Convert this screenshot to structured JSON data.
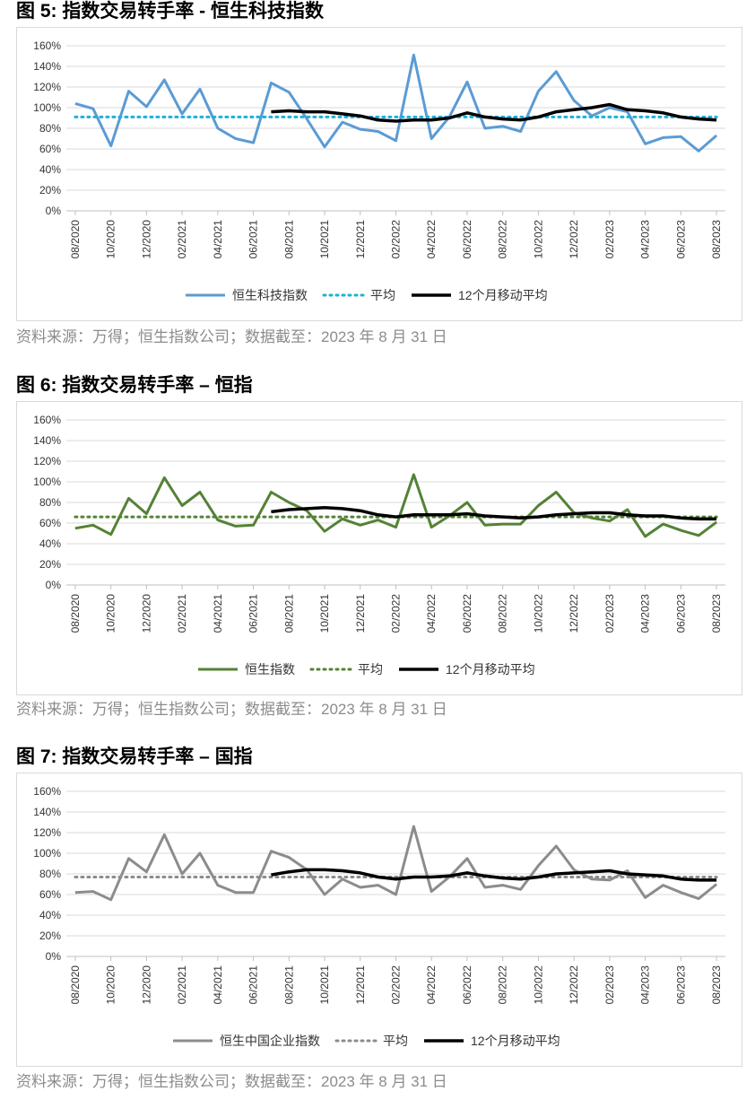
{
  "figures": [
    {
      "title": "图 5:  指数交易转手率  -  恒生科技指数",
      "source": "资料来源：万得；恒生指数公司；数据截至：2023 年 8 月 31 日",
      "colors": {
        "main": "#5b9bd5",
        "avg": "#1fb0d8",
        "ma": "#000000"
      },
      "chart_data": {
        "type": "line",
        "categories": [
          "08/2020",
          "09/2020",
          "10/2020",
          "11/2020",
          "12/2020",
          "01/2021",
          "02/2021",
          "03/2021",
          "04/2021",
          "05/2021",
          "06/2021",
          "07/2021",
          "08/2021",
          "09/2021",
          "10/2021",
          "11/2021",
          "12/2021",
          "01/2022",
          "02/2022",
          "03/2022",
          "04/2022",
          "05/2022",
          "06/2022",
          "07/2022",
          "08/2022",
          "09/2022",
          "10/2022",
          "11/2022",
          "12/2022",
          "01/2023",
          "02/2023",
          "03/2023",
          "04/2023",
          "05/2023",
          "06/2023",
          "07/2023",
          "08/2023"
        ],
        "tick_labels": [
          "08/2020",
          "10/2020",
          "12/2020",
          "02/2021",
          "04/2021",
          "06/2021",
          "08/2021",
          "10/2021",
          "12/2021",
          "02/2022",
          "04/2022",
          "06/2022",
          "08/2022",
          "10/2022",
          "12/2022",
          "02/2023",
          "04/2023",
          "06/2023",
          "08/2023"
        ],
        "y_ticks": [
          "0%",
          "20%",
          "40%",
          "60%",
          "80%",
          "100%",
          "120%",
          "140%",
          "160%"
        ],
        "ylim": [
          0,
          160
        ],
        "legend": [
          "恒生科技指数",
          "平均",
          "12个月移动平均"
        ],
        "series": [
          {
            "name": "恒生科技指数",
            "style": "solid",
            "values": [
              104,
              99,
              63,
              116,
              101,
              127,
              94,
              118,
              80,
              70,
              66,
              124,
              115,
              89,
              62,
              86,
              79,
              77,
              68,
              151,
              70,
              91,
              125,
              80,
              82,
              77,
              116,
              135,
              107,
              92,
              100,
              96,
              65,
              71,
              72,
              58,
              73
            ]
          },
          {
            "name": "平均",
            "style": "dotted",
            "values": [
              91,
              91,
              91,
              91,
              91,
              91,
              91,
              91,
              91,
              91,
              91,
              91,
              91,
              91,
              91,
              91,
              91,
              91,
              91,
              91,
              91,
              91,
              91,
              91,
              91,
              91,
              91,
              91,
              91,
              91,
              91,
              91,
              91,
              91,
              91,
              91,
              91
            ]
          },
          {
            "name": "12个月移动平均",
            "style": "solid",
            "values": [
              null,
              null,
              null,
              null,
              null,
              null,
              null,
              null,
              null,
              null,
              null,
              96,
              97,
              96,
              96,
              94,
              92,
              88,
              87,
              88,
              88,
              90,
              95,
              91,
              89,
              88,
              91,
              96,
              98,
              100,
              103,
              98,
              97,
              95,
              91,
              89,
              88
            ]
          }
        ]
      }
    },
    {
      "title": "图 6:  指数交易转手率  –  恒指",
      "source": "资料来源：万得；恒生指数公司；数据截至：2023 年 8 月 31 日",
      "colors": {
        "main": "#548235",
        "avg": "#548235",
        "ma": "#000000"
      },
      "chart_data": {
        "type": "line",
        "categories": [
          "08/2020",
          "09/2020",
          "10/2020",
          "11/2020",
          "12/2020",
          "01/2021",
          "02/2021",
          "03/2021",
          "04/2021",
          "05/2021",
          "06/2021",
          "07/2021",
          "08/2021",
          "09/2021",
          "10/2021",
          "11/2021",
          "12/2021",
          "01/2022",
          "02/2022",
          "03/2022",
          "04/2022",
          "05/2022",
          "06/2022",
          "07/2022",
          "08/2022",
          "09/2022",
          "10/2022",
          "11/2022",
          "12/2022",
          "01/2023",
          "02/2023",
          "03/2023",
          "04/2023",
          "05/2023",
          "06/2023",
          "07/2023",
          "08/2023"
        ],
        "tick_labels": [
          "08/2020",
          "10/2020",
          "12/2020",
          "02/2021",
          "04/2021",
          "06/2021",
          "08/2021",
          "10/2021",
          "12/2021",
          "02/2022",
          "04/2022",
          "06/2022",
          "08/2022",
          "10/2022",
          "12/2022",
          "02/2023",
          "04/2023",
          "06/2023",
          "08/2023"
        ],
        "y_ticks": [
          "0%",
          "20%",
          "40%",
          "60%",
          "80%",
          "100%",
          "120%",
          "140%",
          "160%"
        ],
        "ylim": [
          0,
          160
        ],
        "legend": [
          "恒生指数",
          "平均",
          "12个月移动平均"
        ],
        "series": [
          {
            "name": "恒生指数",
            "style": "solid",
            "values": [
              55,
              58,
              49,
              84,
              69,
              104,
              77,
              90,
              63,
              57,
              58,
              90,
              80,
              72,
              52,
              64,
              58,
              63,
              56,
              107,
              56,
              67,
              80,
              58,
              59,
              59,
              77,
              90,
              70,
              65,
              62,
              73,
              47,
              59,
              53,
              48,
              61
            ]
          },
          {
            "name": "平均",
            "style": "dotted",
            "values": [
              66,
              66,
              66,
              66,
              66,
              66,
              66,
              66,
              66,
              66,
              66,
              66,
              66,
              66,
              66,
              66,
              66,
              66,
              66,
              66,
              66,
              66,
              66,
              66,
              66,
              66,
              66,
              66,
              66,
              66,
              66,
              66,
              66,
              66,
              66,
              66,
              66
            ]
          },
          {
            "name": "12个月移动平均",
            "style": "solid",
            "values": [
              null,
              null,
              null,
              null,
              null,
              null,
              null,
              null,
              null,
              null,
              null,
              71,
              73,
              74,
              75,
              74,
              72,
              68,
              66,
              68,
              68,
              68,
              69,
              67,
              66,
              65,
              66,
              68,
              69,
              70,
              70,
              68,
              67,
              67,
              65,
              64,
              64
            ]
          }
        ]
      }
    },
    {
      "title": "图 7:  指数交易转手率  –  国指",
      "source": "资料来源：万得；恒生指数公司；数据截至：2023 年 8 月 31 日",
      "colors": {
        "main": "#8c8c8c",
        "avg": "#8c8c8c",
        "ma": "#000000"
      },
      "chart_data": {
        "type": "line",
        "categories": [
          "08/2020",
          "09/2020",
          "10/2020",
          "11/2020",
          "12/2020",
          "01/2021",
          "02/2021",
          "03/2021",
          "04/2021",
          "05/2021",
          "06/2021",
          "07/2021",
          "08/2021",
          "09/2021",
          "10/2021",
          "11/2021",
          "12/2021",
          "01/2022",
          "02/2022",
          "03/2022",
          "04/2022",
          "05/2022",
          "06/2022",
          "07/2022",
          "08/2022",
          "09/2022",
          "10/2022",
          "11/2022",
          "12/2022",
          "01/2023",
          "02/2023",
          "03/2023",
          "04/2023",
          "05/2023",
          "06/2023",
          "07/2023",
          "08/2023"
        ],
        "tick_labels": [
          "08/2020",
          "10/2020",
          "12/2020",
          "02/2021",
          "04/2021",
          "06/2021",
          "08/2021",
          "10/2021",
          "12/2021",
          "02/2022",
          "04/2022",
          "06/2022",
          "08/2022",
          "10/2022",
          "12/2022",
          "02/2023",
          "04/2023",
          "06/2023",
          "08/2023"
        ],
        "y_ticks": [
          "0%",
          "20%",
          "40%",
          "60%",
          "80%",
          "100%",
          "120%",
          "140%",
          "160%"
        ],
        "ylim": [
          0,
          160
        ],
        "legend": [
          "恒生中国企业指数",
          "平均",
          "12个月移动平均"
        ],
        "series": [
          {
            "name": "恒生中国企业指数",
            "style": "solid",
            "values": [
              62,
              63,
              55,
              95,
              82,
              118,
              80,
              100,
              69,
              62,
              62,
              102,
              96,
              84,
              60,
              75,
              67,
              69,
              60,
              126,
              63,
              77,
              95,
              67,
              69,
              65,
              88,
              107,
              84,
              75,
              74,
              83,
              57,
              69,
              62,
              56,
              70
            ]
          },
          {
            "name": "平均",
            "style": "dotted",
            "values": [
              77,
              77,
              77,
              77,
              77,
              77,
              77,
              77,
              77,
              77,
              77,
              77,
              77,
              77,
              77,
              77,
              77,
              77,
              77,
              77,
              77,
              77,
              77,
              77,
              77,
              77,
              77,
              77,
              77,
              77,
              77,
              77,
              77,
              77,
              77,
              77,
              77
            ]
          },
          {
            "name": "12个月移动平均",
            "style": "solid",
            "values": [
              null,
              null,
              null,
              null,
              null,
              null,
              null,
              null,
              null,
              null,
              null,
              79,
              82,
              84,
              84,
              83,
              81,
              77,
              75,
              77,
              77,
              78,
              81,
              78,
              76,
              75,
              77,
              80,
              81,
              82,
              83,
              80,
              79,
              78,
              75,
              74,
              74
            ]
          }
        ]
      }
    }
  ]
}
